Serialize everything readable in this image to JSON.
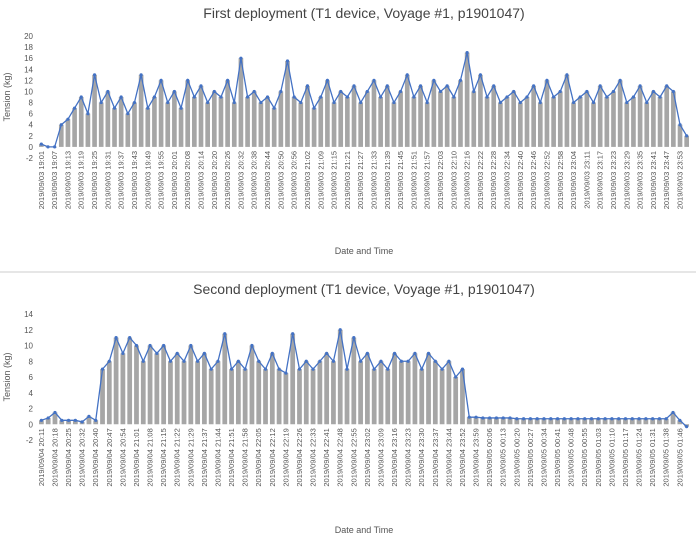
{
  "chart_data": [
    {
      "type": "bar-line",
      "title": "First deployment (T1 device, Voyage #1, p1901047)",
      "ylabel": "Tension (kg)",
      "xlabel": "Date and Time",
      "bar_color": "#a6a6a6",
      "line_color": "#4472c4",
      "grid": false,
      "ylim": [
        -2,
        20
      ],
      "yticks": [
        -2,
        0,
        2,
        4,
        6,
        8,
        10,
        12,
        14,
        16,
        18,
        20
      ],
      "categories": [
        "2019/09/03 19:01",
        null,
        "2019/09/03 19:07",
        null,
        "2019/09/03 19:13",
        null,
        "2019/09/03 19:19",
        null,
        "2019/09/03 19:25",
        null,
        "2019/09/03 19:31",
        null,
        "2019/09/03 19:37",
        null,
        "2019/09/03 19:43",
        null,
        "2019/09/03 19:49",
        null,
        "2019/09/03 19:55",
        null,
        "2019/09/03 20:01",
        null,
        "2019/09/03 20:08",
        null,
        "2019/09/03 20:14",
        null,
        "2019/09/03 20:20",
        null,
        "2019/09/03 20:26",
        null,
        "2019/09/03 20:32",
        null,
        "2019/09/03 20:38",
        null,
        "2019/09/03 20:44",
        null,
        "2019/09/03 20:50",
        null,
        "2019/09/03 20:56",
        null,
        "2019/09/03 21:02",
        null,
        "2019/09/03 21:09",
        null,
        "2019/09/03 21:15",
        null,
        "2019/09/03 21:21",
        null,
        "2019/09/03 21:27",
        null,
        "2019/09/03 21:33",
        null,
        "2019/09/03 21:39",
        null,
        "2019/09/03 21:45",
        null,
        "2019/09/03 21:51",
        null,
        "2019/09/03 21:57",
        null,
        "2019/09/03 22:03",
        null,
        "2019/09/03 22:10",
        null,
        "2019/09/03 22:16",
        null,
        "2019/09/03 22:22",
        null,
        "2019/09/03 22:28",
        null,
        "2019/09/03 22:34",
        null,
        "2019/09/03 22:40",
        null,
        "2019/09/03 22:46",
        null,
        "2019/09/03 22:52",
        null,
        "2019/09/03 22:58",
        null,
        "2019/09/03 23:04",
        null,
        "2019/09/03 23:11",
        null,
        "2019/09/03 23:17",
        null,
        "2019/09/03 23:23",
        null,
        "2019/09/03 23:29",
        null,
        "2019/09/03 23:35",
        null,
        "2019/09/03 23:41",
        null,
        "2019/09/03 23:47",
        null,
        "2019/09/03 23:53",
        null
      ],
      "values": [
        0.5,
        0,
        0,
        4,
        5,
        7,
        9,
        6,
        13,
        8,
        10,
        7,
        9,
        6,
        8,
        13,
        7,
        9,
        12,
        8,
        10,
        7,
        12,
        9,
        11,
        8,
        10,
        9,
        12,
        8,
        16,
        9,
        10,
        8,
        9,
        7,
        10,
        15.5,
        9,
        8,
        11,
        7,
        9,
        12,
        8,
        10,
        9,
        11,
        8,
        10,
        12,
        9,
        11,
        8,
        10,
        13,
        9,
        11,
        8,
        12,
        10,
        11,
        9,
        12,
        17,
        10,
        13,
        9,
        11,
        8,
        9,
        10,
        8,
        9,
        11,
        8,
        12,
        9,
        10,
        13,
        8,
        9,
        10,
        8,
        11,
        9,
        10,
        12,
        8,
        9,
        11,
        8,
        10,
        9,
        11,
        10,
        4,
        2
      ]
    },
    {
      "type": "bar-line",
      "title": "Second deployment (T1 device, Voyage #1, p1901047)",
      "ylabel": "Tension (kg)",
      "xlabel": "Date and Time",
      "bar_color": "#a6a6a6",
      "line_color": "#4472c4",
      "grid": false,
      "ylim": [
        -2,
        14
      ],
      "yticks": [
        -2,
        0,
        2,
        4,
        6,
        8,
        10,
        12,
        14
      ],
      "categories": [
        "2019/09/04 20:11",
        null,
        "2019/09/04 20:18",
        null,
        "2019/09/04 20:25",
        null,
        "2019/09/04 20:32",
        null,
        "2019/09/04 20:40",
        null,
        "2019/09/04 20:47",
        null,
        "2019/09/04 20:54",
        null,
        "2019/09/04 21:01",
        null,
        "2019/09/04 21:08",
        null,
        "2019/09/04 21:15",
        null,
        "2019/09/04 21:22",
        null,
        "2019/09/04 21:29",
        null,
        "2019/09/04 21:37",
        null,
        "2019/09/04 21:44",
        null,
        "2019/09/04 21:51",
        null,
        "2019/09/04 21:58",
        null,
        "2019/09/04 22:05",
        null,
        "2019/09/04 22:12",
        null,
        "2019/09/04 22:19",
        null,
        "2019/09/04 22:26",
        null,
        "2019/09/04 22:33",
        null,
        "2019/09/04 22:41",
        null,
        "2019/09/04 22:48",
        null,
        "2019/09/04 22:55",
        null,
        "2019/09/04 23:02",
        null,
        "2019/09/04 23:09",
        null,
        "2019/09/04 23:16",
        null,
        "2019/09/04 23:23",
        null,
        "2019/09/04 23:30",
        null,
        "2019/09/04 23:37",
        null,
        "2019/09/04 23:44",
        null,
        "2019/09/04 23:52",
        null,
        "2019/09/04 23:59",
        null,
        "2019/09/05 00:06",
        null,
        "2019/09/05 00:13",
        null,
        "2019/09/05 00:20",
        null,
        "2019/09/05 00:27",
        null,
        "2019/09/05 00:34",
        null,
        "2019/09/05 00:41",
        null,
        "2019/09/05 00:48",
        null,
        "2019/09/05 00:55",
        null,
        "2019/09/05 01:03",
        null,
        "2019/09/05 01:10",
        null,
        "2019/09/05 01:17",
        null,
        "2019/09/05 01:24",
        null,
        "2019/09/05 01:31",
        null,
        "2019/09/05 01:38",
        null,
        "2019/09/05 01:46",
        null
      ],
      "values": [
        0.5,
        0.8,
        1.5,
        0.5,
        0.5,
        0.5,
        0.3,
        1,
        0.5,
        7,
        8,
        11,
        9,
        11,
        10,
        8,
        10,
        9,
        10,
        8,
        9,
        8,
        10,
        8,
        9,
        7,
        8,
        11.5,
        7,
        8,
        7,
        10,
        8,
        7,
        9,
        7,
        6.5,
        11.5,
        7,
        8,
        7,
        8,
        9,
        8,
        12,
        7,
        11,
        8,
        9,
        7,
        8,
        7,
        9,
        8,
        8,
        9,
        7,
        9,
        8,
        7,
        8,
        6,
        7,
        0.9,
        0.9,
        0.8,
        0.8,
        0.8,
        0.8,
        0.8,
        0.7,
        0.7,
        0.7,
        0.7,
        0.7,
        0.7,
        0.7,
        0.7,
        0.7,
        0.7,
        0.7,
        0.7,
        0.7,
        0.7,
        0.7,
        0.7,
        0.7,
        0.7,
        0.7,
        0.7,
        0.7,
        0.7,
        0.7,
        1.5,
        0.5,
        -0.3
      ]
    }
  ]
}
